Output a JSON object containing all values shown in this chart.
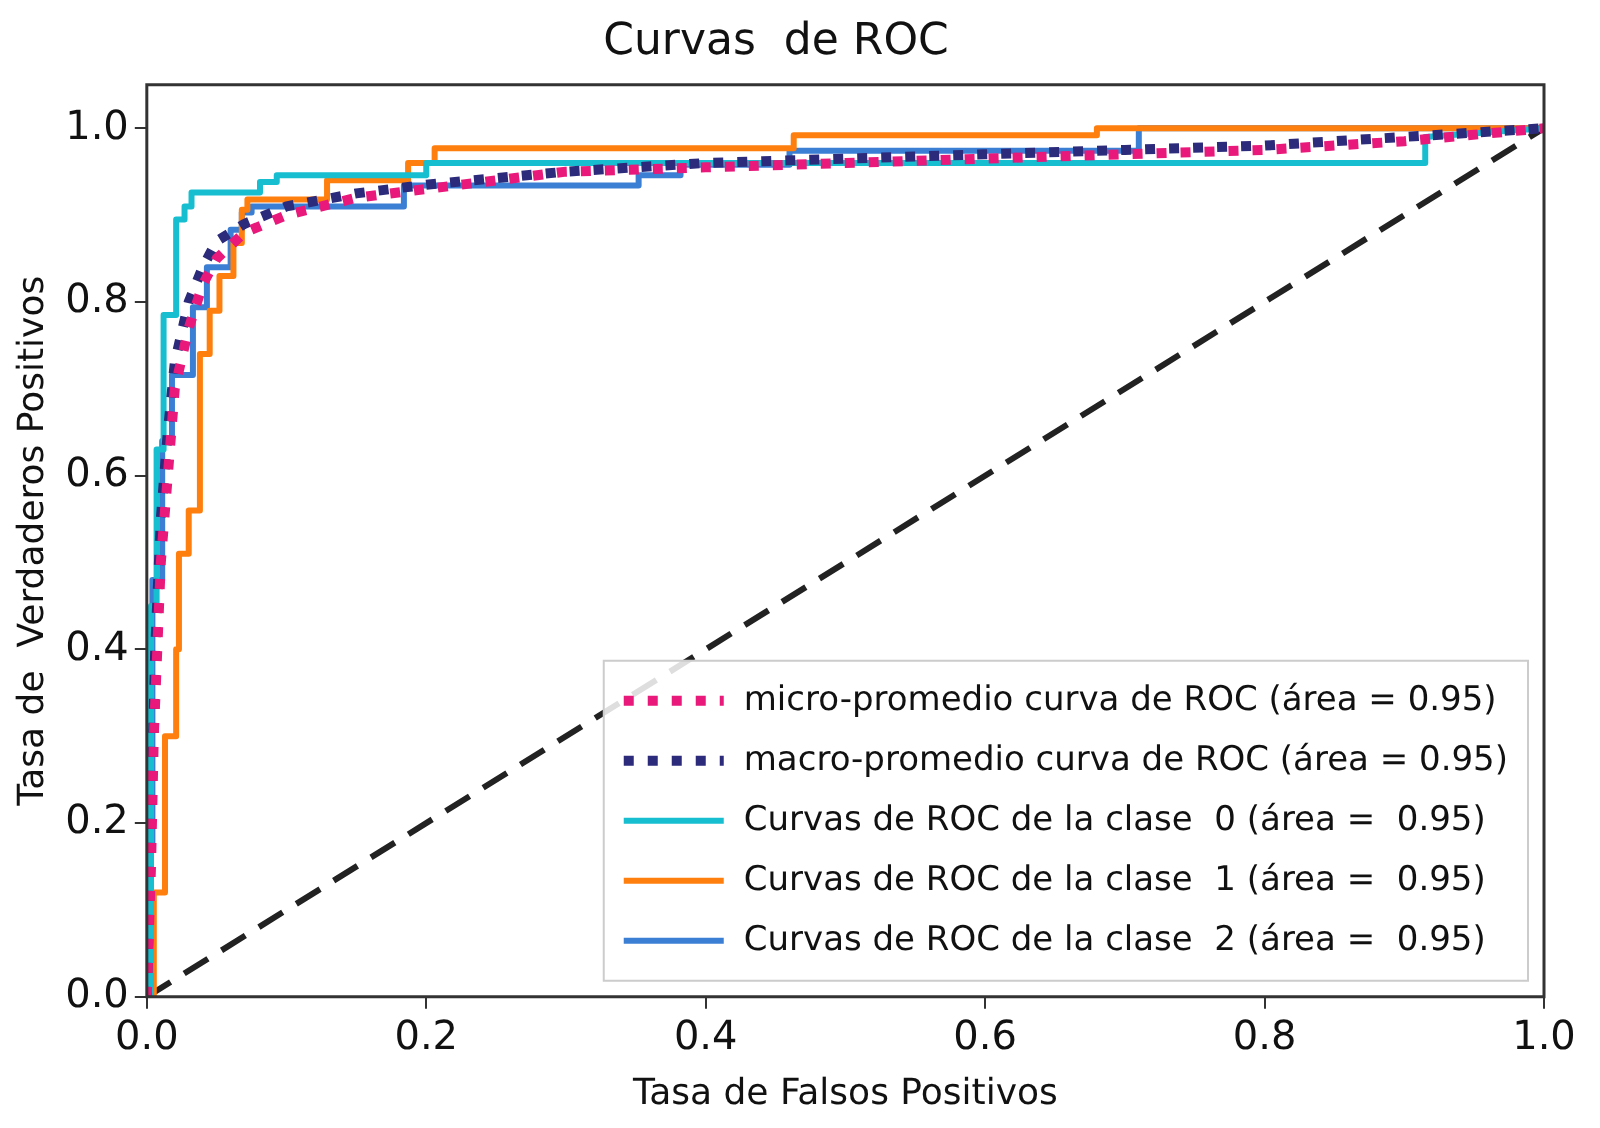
{
  "chart_data": {
    "type": "line",
    "title": "Curvas  de ROC",
    "xlabel": "Tasa de Falsos Positivos",
    "ylabel": "Tasa de  Verdaderos Positivos",
    "xlim": [
      0,
      1
    ],
    "ylim": [
      0,
      1.05
    ],
    "xticks": [
      {
        "value": 0,
        "label": "0.0"
      },
      0.2,
      0.4,
      0.6,
      0.8,
      {
        "value": 1,
        "label": "1.0"
      }
    ],
    "yticks": [
      {
        "value": 0,
        "label": "0.0"
      },
      0.2,
      0.4,
      0.6,
      0.8,
      {
        "value": 1,
        "label": "1.0"
      }
    ],
    "grid": false,
    "legend": "bottom right",
    "marker": "none",
    "series": [
      {
        "name": "micro-promedio curva de ROC (área = 0.95)",
        "color": "#e8197a",
        "line_style": "dotted",
        "x": [
          0,
          0.003,
          0.005,
          0.01,
          0.015,
          0.02,
          0.03,
          0.04,
          0.05,
          0.07,
          0.1,
          0.15,
          0.2,
          0.3,
          0.4,
          0.5,
          0.6,
          0.7,
          0.8,
          0.9,
          1
        ],
        "values": [
          0,
          0.15,
          0.3,
          0.5,
          0.6,
          0.7,
          0.77,
          0.82,
          0.85,
          0.88,
          0.9,
          0.92,
          0.93,
          0.95,
          0.955,
          0.96,
          0.965,
          0.97,
          0.975,
          0.985,
          1
        ]
      },
      {
        "name": "macro-promedio curva de ROC (área = 0.95)",
        "color": "#2c2a7a",
        "line_style": "dotted",
        "x": [
          0,
          0.003,
          0.006,
          0.01,
          0.015,
          0.02,
          0.03,
          0.04,
          0.05,
          0.07,
          0.1,
          0.15,
          0.2,
          0.3,
          0.4,
          0.5,
          0.6,
          0.7,
          0.8,
          0.9,
          1
        ],
        "values": [
          0,
          0.2,
          0.4,
          0.55,
          0.65,
          0.73,
          0.8,
          0.84,
          0.87,
          0.89,
          0.91,
          0.925,
          0.935,
          0.95,
          0.96,
          0.965,
          0.97,
          0.975,
          0.98,
          0.99,
          1
        ]
      },
      {
        "name": "Curvas de ROC de la clase  0 (área =  0.95)",
        "color": "#17becf",
        "line_style": "solid",
        "x": [
          0,
          0.003,
          0.003,
          0.007,
          0.007,
          0.012,
          0.012,
          0.021,
          0.021,
          0.027,
          0.027,
          0.032,
          0.032,
          0.081,
          0.081,
          0.093,
          0.093,
          0.2,
          0.2,
          0.915,
          0.915,
          1
        ],
        "values": [
          0,
          0,
          0.45,
          0.45,
          0.63,
          0.63,
          0.785,
          0.785,
          0.895,
          0.895,
          0.91,
          0.91,
          0.926,
          0.926,
          0.938,
          0.938,
          0.946,
          0.946,
          0.96,
          0.96,
          0.99,
          1
        ]
      },
      {
        "name": "Curvas de ROC de la clase  1 (área =  0.95)",
        "color": "#ff7f0e",
        "line_style": "solid",
        "x": [
          0,
          0.005,
          0.005,
          0.013,
          0.013,
          0.021,
          0.021,
          0.023,
          0.023,
          0.03,
          0.03,
          0.038,
          0.038,
          0.045,
          0.045,
          0.052,
          0.052,
          0.062,
          0.062,
          0.068,
          0.068,
          0.072,
          0.072,
          0.129,
          0.129,
          0.187,
          0.187,
          0.206,
          0.206,
          0.463,
          0.463,
          0.68,
          0.68,
          1
        ],
        "values": [
          0,
          0,
          0.12,
          0.12,
          0.3,
          0.3,
          0.4,
          0.4,
          0.51,
          0.51,
          0.56,
          0.56,
          0.74,
          0.74,
          0.79,
          0.79,
          0.83,
          0.83,
          0.868,
          0.868,
          0.906,
          0.906,
          0.918,
          0.918,
          0.94,
          0.94,
          0.96,
          0.96,
          0.977,
          0.977,
          0.992,
          0.992,
          1,
          1
        ]
      },
      {
        "name": "Curvas de ROC de la clase  2 (área =  0.95)",
        "color": "#3a7fd4",
        "line_style": "solid",
        "x": [
          0,
          0.002,
          0.002,
          0.004,
          0.004,
          0.011,
          0.011,
          0.018,
          0.018,
          0.033,
          0.033,
          0.043,
          0.043,
          0.06,
          0.06,
          0.068,
          0.068,
          0.075,
          0.075,
          0.184,
          0.184,
          0.352,
          0.352,
          0.382,
          0.382,
          0.46,
          0.46,
          0.71,
          0.71,
          1
        ],
        "values": [
          0,
          0,
          0.175,
          0.175,
          0.48,
          0.48,
          0.64,
          0.64,
          0.716,
          0.716,
          0.794,
          0.794,
          0.84,
          0.84,
          0.883,
          0.883,
          0.903,
          0.903,
          0.91,
          0.91,
          0.934,
          0.934,
          0.946,
          0.946,
          0.958,
          0.958,
          0.974,
          0.974,
          1,
          1
        ]
      },
      {
        "color": "#222222",
        "line_style": "dashed",
        "x": [
          0,
          1
        ],
        "values": [
          0,
          1
        ]
      }
    ]
  }
}
